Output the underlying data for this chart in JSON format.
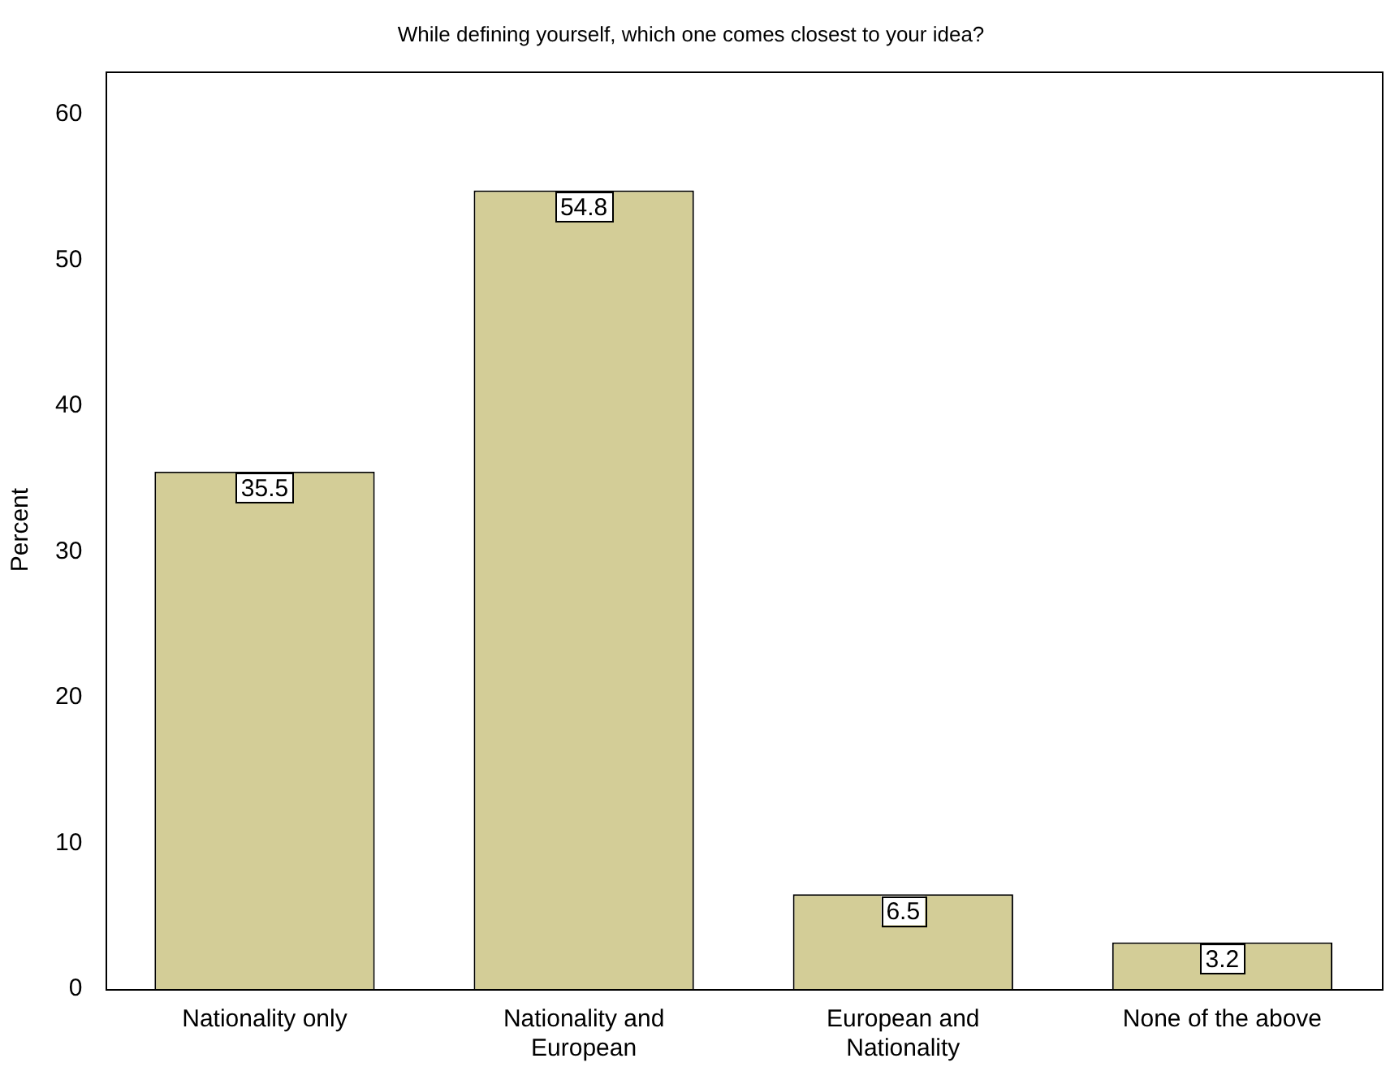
{
  "chart_data": {
    "type": "bar",
    "title": "While defining yourself, which one comes closest to your idea?",
    "ylabel": "Percent",
    "categories": [
      "Nationality only",
      "Nationality and European",
      "European and Nationality",
      "None of the above"
    ],
    "values": [
      35.5,
      54.8,
      6.5,
      3.2
    ],
    "color": "#d3cd97",
    "ylim": [
      0,
      63
    ],
    "yticks": [
      0,
      10,
      20,
      30,
      40,
      50,
      60
    ],
    "grid": false,
    "legend": false,
    "data_labels": true
  }
}
